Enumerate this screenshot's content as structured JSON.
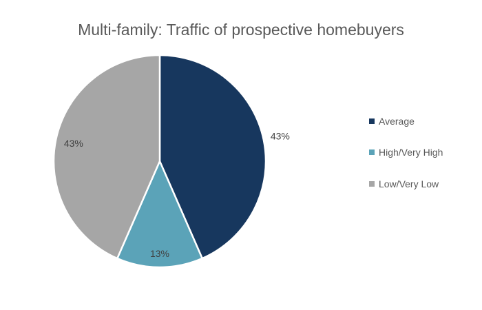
{
  "chart_data": {
    "type": "pie",
    "title": "Multi-family: Traffic of prospective homebuyers",
    "categories": [
      "Average",
      "High/Very High",
      "Low/Very Low"
    ],
    "values": [
      43,
      13,
      43
    ],
    "labels": [
      "43%",
      "13%",
      "43%"
    ],
    "colors": [
      "#17375E",
      "#5BA3B8",
      "#A6A6A6"
    ],
    "start_angle_deg": 0,
    "direction": "clockwise",
    "legend_position": "right"
  }
}
